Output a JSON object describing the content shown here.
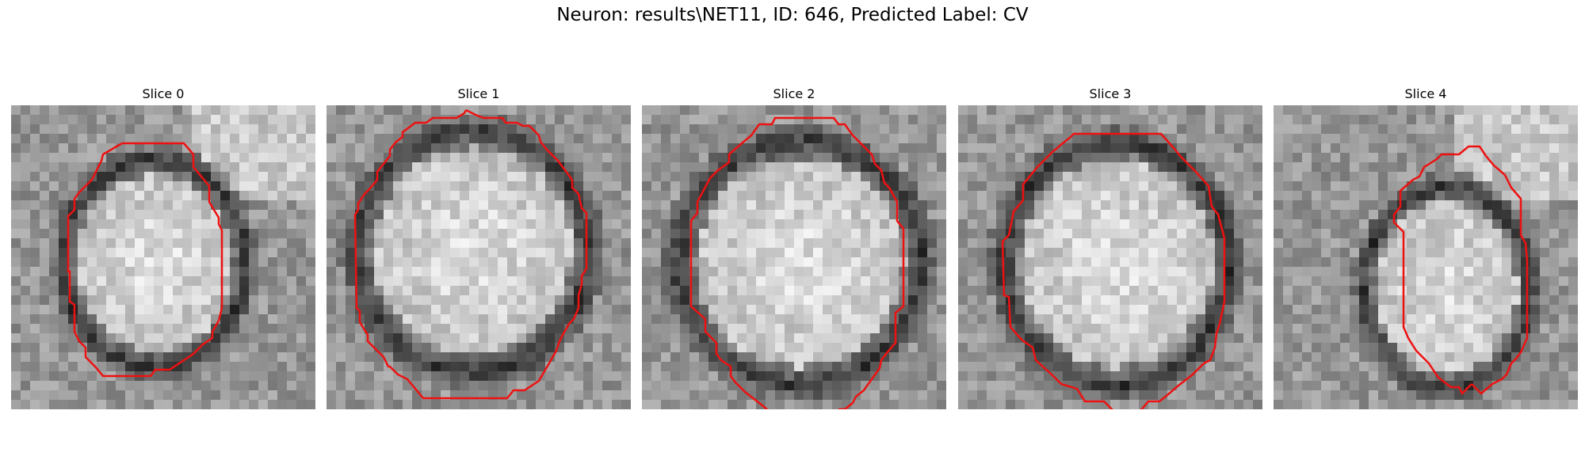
{
  "figure": {
    "title": "Neuron: results\\NET11, ID: 646, Predicted Label: CV"
  },
  "slices": [
    {
      "label": "Slice 0"
    },
    {
      "label": "Slice 1"
    },
    {
      "label": "Slice 2"
    },
    {
      "label": "Slice 3"
    },
    {
      "label": "Slice 4"
    }
  ],
  "colors": {
    "contour": "#ee1111",
    "background": "#ffffff"
  },
  "colormap": "gray"
}
